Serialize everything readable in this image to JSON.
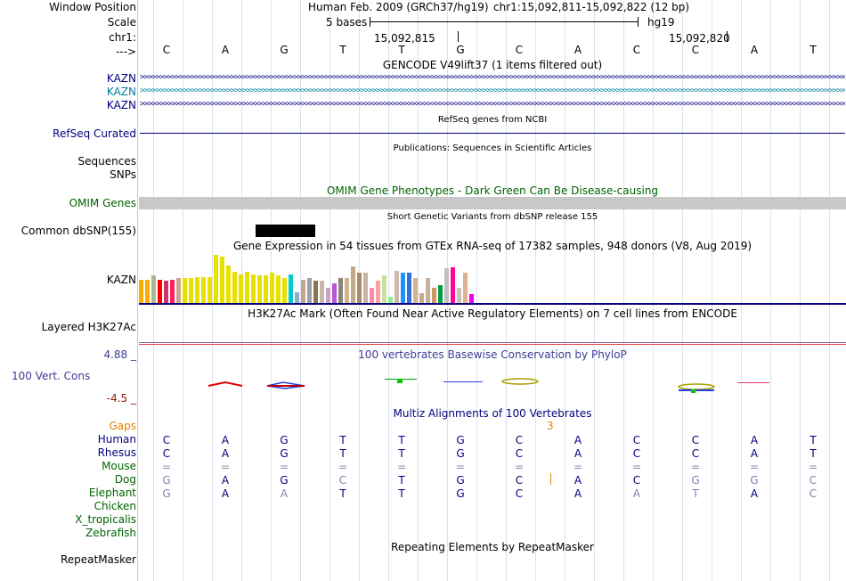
{
  "header": {
    "window_position_label": "Window Position",
    "scale_label": "Scale",
    "chrom_label": "chr1:",
    "arrow_label": "--->",
    "assembly": "Human Feb. 2009 (GRCh37/hg19)",
    "position": "chr1:15,092,811-15,092,822 (12 bp)",
    "scale_text": "5 bases",
    "db": "hg19",
    "coord1": "15,092,815",
    "coord2": "15,092,820"
  },
  "sequence": [
    "C",
    "A",
    "G",
    "T",
    "T",
    "G",
    "C",
    "A",
    "C",
    "C",
    "A",
    "T"
  ],
  "tracks": {
    "gencode": {
      "title": "GENCODE V49lift37 (1 items filtered out)",
      "genes": [
        "KAZN",
        "KAZN",
        "KAZN"
      ]
    },
    "refseq": {
      "title": "RefSeq genes from NCBI",
      "label": "RefSeq Curated"
    },
    "pubs": {
      "title": "Publications: Sequences in Scientific Articles",
      "label1": "Sequences",
      "label2": "SNPs"
    },
    "omim": {
      "title": "OMIM Gene Phenotypes - Dark Green Can Be Disease-causing",
      "label": "OMIM Genes"
    },
    "dbsnp": {
      "title": "Short Genetic Variants from dbSNP release 155",
      "label": "Common dbSNP(155)"
    },
    "gtex": {
      "title": "Gene Expression in 54 tissues from GTEx RNA-seq of 17382 samples, 948 donors (V8, Aug 2019)",
      "label": "KAZN",
      "values": [
        0.47,
        0.47,
        0.55,
        0.47,
        0.45,
        0.47,
        0.5,
        0.5,
        0.5,
        0.52,
        0.52,
        0.52,
        0.97,
        0.93,
        0.75,
        0.63,
        0.57,
        0.63,
        0.57,
        0.55,
        0.55,
        0.6,
        0.55,
        0.5,
        0.58,
        0.22,
        0.47,
        0.5,
        0.45,
        0.45,
        0.3,
        0.4,
        0.5,
        0.5,
        0.73,
        0.6,
        0.6,
        0.3,
        0.45,
        0.55,
        0.13,
        0.65,
        0.6,
        0.6,
        0.5,
        0.2,
        0.5,
        0.3,
        0.35,
        0.7,
        0.72,
        0.3,
        0.6,
        0.18
      ],
      "colors": [
        "#ffaa00",
        "#ffaa00",
        "#a8b88a",
        "#ff0000",
        "#cc3366",
        "#ff1e60",
        "#c9a58f",
        "#e8e000",
        "#e8e000",
        "#e8e000",
        "#e8e000",
        "#e8e000",
        "#e8e000",
        "#e8e000",
        "#e8e000",
        "#e8e000",
        "#e8e000",
        "#e8e000",
        "#e8e000",
        "#e8e000",
        "#e8e000",
        "#e8e000",
        "#e8e000",
        "#e8e000",
        "#00cccc",
        "#8faacc",
        "#bfa890",
        "#a0a0a0",
        "#8b7355",
        "#c8b8a8",
        "#c8a2c8",
        "#ba55d3",
        "#8b8378",
        "#d2b48c",
        "#c4a88a",
        "#a88c70",
        "#c8b4a0",
        "#ff88aa",
        "#ffa0a0",
        "#c8e0a0",
        "#90ee90",
        "#ccbbaa",
        "#1e90ff",
        "#3070e0",
        "#d2b48c",
        "#ccaa88",
        "#c8b09a",
        "#cc9966",
        "#00a040",
        "#c0c0c0",
        "#ff0099",
        "#d0c0b0",
        "#e0b090",
        "#ee00ee"
      ]
    },
    "h3k27ac": {
      "title": "H3K27Ac Mark (Often Found Near Active Regulatory Elements) on 7 cell lines from ENCODE",
      "label": "Layered H3K27Ac"
    },
    "phylop": {
      "title": "100 vertebrates Basewise Conservation by PhyloP",
      "label": "100 Vert. Cons",
      "max": "4.88 _",
      "min": "-4.5 _"
    },
    "multiz": {
      "title": "Multiz Alignments of 100 Vertebrates",
      "gaps_label": "Gaps",
      "gap_count": "3"
    },
    "repeat": {
      "title": "Repeating Elements by RepeatMasker",
      "label": "RepeatMasker"
    }
  },
  "species": [
    {
      "name": "Human",
      "bases": [
        "C",
        "A",
        "G",
        "T",
        "T",
        "G",
        "C",
        "A",
        "C",
        "C",
        "A",
        "T"
      ]
    },
    {
      "name": "Rhesus",
      "bases": [
        "C",
        "A",
        "G",
        "T",
        "T",
        "G",
        "C",
        "A",
        "C",
        "C",
        "A",
        "T"
      ]
    },
    {
      "name": "Mouse",
      "bases": [
        "=",
        "=",
        "=",
        "=",
        "=",
        "=",
        "=",
        "=",
        "=",
        "=",
        "=",
        "="
      ]
    },
    {
      "name": "Dog",
      "bases": [
        "G",
        "A",
        "G",
        "C",
        "T",
        "G",
        "C",
        "A",
        "C",
        "G",
        "G",
        "C"
      ]
    },
    {
      "name": "Elephant",
      "bases": [
        "G",
        "A",
        "A",
        "T",
        "T",
        "G",
        "C",
        "A",
        "A",
        "T",
        "A",
        "C"
      ]
    },
    {
      "name": "Chicken",
      "bases": []
    },
    {
      "name": "X_tropicalis",
      "bases": []
    },
    {
      "name": "Zebrafish",
      "bases": []
    }
  ],
  "colors": {
    "navy": "#000080",
    "green": "#006400",
    "omim_gray": "#c8c8c8",
    "orange": "#e08000",
    "maroon": "#8b1a00",
    "blue_label": "#3c3c96",
    "teal": "#0080a0"
  }
}
